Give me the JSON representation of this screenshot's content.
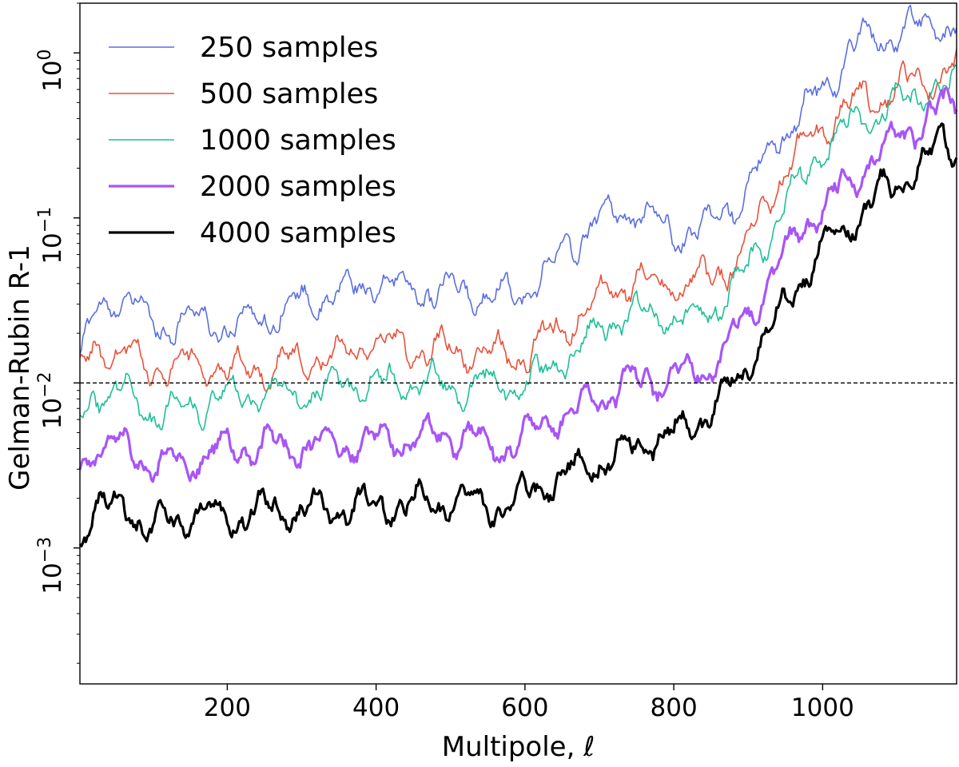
{
  "chart_data": {
    "type": "line",
    "xlabel": "Multipole, ℓ",
    "ylabel": "Gelman-Rubin R-1",
    "xlim": [
      2,
      1180
    ],
    "ylim": [
      0.00015,
      2.0
    ],
    "yscale": "log",
    "x_ticks": [
      200,
      400,
      600,
      800,
      1000
    ],
    "y_tick_labels": [
      {
        "value": 1.0,
        "base": "10",
        "exp": "0"
      },
      {
        "value": 0.1,
        "base": "10",
        "exp": "−1"
      },
      {
        "value": 0.01,
        "base": "10",
        "exp": "−2"
      },
      {
        "value": 0.001,
        "base": "10",
        "exp": "−3"
      }
    ],
    "reference_line": {
      "y": 0.01,
      "style": "dashed",
      "color": "#000000"
    },
    "legend_position": "top-left",
    "series": [
      {
        "name": "250 samples",
        "color": "#5b6fe0",
        "width": 1.6,
        "anchors": [
          [
            2,
            0.013
          ],
          [
            20,
            0.025
          ],
          [
            60,
            0.035
          ],
          [
            100,
            0.022
          ],
          [
            150,
            0.025
          ],
          [
            200,
            0.022
          ],
          [
            300,
            0.03
          ],
          [
            400,
            0.04
          ],
          [
            500,
            0.035
          ],
          [
            570,
            0.035
          ],
          [
            600,
            0.035
          ],
          [
            650,
            0.06
          ],
          [
            700,
            0.1
          ],
          [
            750,
            0.11
          ],
          [
            800,
            0.08
          ],
          [
            850,
            0.09
          ],
          [
            900,
            0.15
          ],
          [
            950,
            0.35
          ],
          [
            1000,
            0.6
          ],
          [
            1050,
            1.2
          ],
          [
            1100,
            1.3
          ],
          [
            1150,
            1.5
          ],
          [
            1180,
            1.3
          ]
        ]
      },
      {
        "name": "500 samples",
        "color": "#e8523b",
        "width": 1.6,
        "anchors": [
          [
            2,
            0.011
          ],
          [
            20,
            0.016
          ],
          [
            60,
            0.015
          ],
          [
            100,
            0.012
          ],
          [
            150,
            0.013
          ],
          [
            200,
            0.012
          ],
          [
            300,
            0.013
          ],
          [
            400,
            0.017
          ],
          [
            500,
            0.016
          ],
          [
            570,
            0.015
          ],
          [
            600,
            0.015
          ],
          [
            650,
            0.022
          ],
          [
            700,
            0.033
          ],
          [
            750,
            0.042
          ],
          [
            800,
            0.04
          ],
          [
            850,
            0.042
          ],
          [
            900,
            0.07
          ],
          [
            950,
            0.2
          ],
          [
            1000,
            0.35
          ],
          [
            1050,
            0.55
          ],
          [
            1100,
            0.6
          ],
          [
            1150,
            0.75
          ],
          [
            1180,
            0.8
          ]
        ]
      },
      {
        "name": "1000 samples",
        "color": "#1fbf98",
        "width": 1.6,
        "anchors": [
          [
            2,
            0.006
          ],
          [
            20,
            0.009
          ],
          [
            60,
            0.009
          ],
          [
            100,
            0.0065
          ],
          [
            150,
            0.0075
          ],
          [
            200,
            0.008
          ],
          [
            300,
            0.009
          ],
          [
            400,
            0.01
          ],
          [
            500,
            0.0095
          ],
          [
            570,
            0.01
          ],
          [
            600,
            0.009
          ],
          [
            650,
            0.014
          ],
          [
            700,
            0.021
          ],
          [
            750,
            0.027
          ],
          [
            800,
            0.025
          ],
          [
            850,
            0.027
          ],
          [
            900,
            0.05
          ],
          [
            950,
            0.12
          ],
          [
            1000,
            0.25
          ],
          [
            1050,
            0.4
          ],
          [
            1100,
            0.5
          ],
          [
            1150,
            0.6
          ],
          [
            1180,
            0.6
          ]
        ]
      },
      {
        "name": "2000 samples",
        "color": "#a855f7",
        "width": 3.2,
        "anchors": [
          [
            2,
            0.003
          ],
          [
            20,
            0.004
          ],
          [
            60,
            0.0045
          ],
          [
            100,
            0.003
          ],
          [
            150,
            0.0035
          ],
          [
            200,
            0.004
          ],
          [
            300,
            0.004
          ],
          [
            400,
            0.0045
          ],
          [
            500,
            0.0048
          ],
          [
            570,
            0.004
          ],
          [
            600,
            0.0045
          ],
          [
            650,
            0.0065
          ],
          [
            700,
            0.008
          ],
          [
            750,
            0.01
          ],
          [
            800,
            0.011
          ],
          [
            850,
            0.013
          ],
          [
            900,
            0.025
          ],
          [
            950,
            0.06
          ],
          [
            1000,
            0.12
          ],
          [
            1050,
            0.2
          ],
          [
            1100,
            0.3
          ],
          [
            1150,
            0.42
          ],
          [
            1180,
            0.5
          ]
        ]
      },
      {
        "name": "4000 samples",
        "color": "#000000",
        "width": 3.2,
        "anchors": [
          [
            2,
            0.0012
          ],
          [
            20,
            0.0018
          ],
          [
            60,
            0.0018
          ],
          [
            100,
            0.0013
          ],
          [
            150,
            0.0015
          ],
          [
            200,
            0.0016
          ],
          [
            300,
            0.0017
          ],
          [
            400,
            0.0018
          ],
          [
            500,
            0.0019
          ],
          [
            570,
            0.0017
          ],
          [
            600,
            0.0021
          ],
          [
            650,
            0.0028
          ],
          [
            700,
            0.0034
          ],
          [
            750,
            0.004
          ],
          [
            800,
            0.005
          ],
          [
            850,
            0.0065
          ],
          [
            900,
            0.013
          ],
          [
            950,
            0.03
          ],
          [
            1000,
            0.07
          ],
          [
            1050,
            0.11
          ],
          [
            1100,
            0.16
          ],
          [
            1150,
            0.25
          ],
          [
            1180,
            0.3
          ]
        ]
      }
    ]
  }
}
